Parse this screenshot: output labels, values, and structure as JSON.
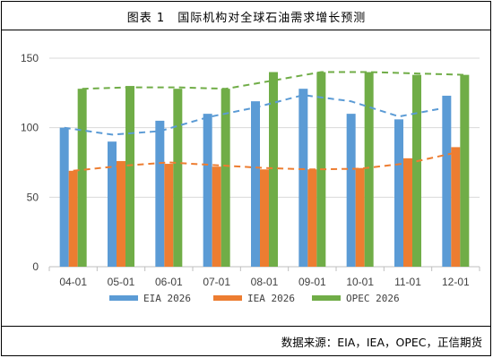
{
  "title": "图表 1　国际机构对全球石油需求增长预测",
  "source": "数据来源：EIA，IEA，OPEC，正信期货",
  "chart_data": {
    "type": "bar",
    "categories": [
      "04-01",
      "05-01",
      "06-01",
      "07-01",
      "08-01",
      "09-01",
      "10-01",
      "11-01",
      "12-01"
    ],
    "series": [
      {
        "name": "EIA 2026",
        "color": "#5B9BD5",
        "values": [
          100,
          90,
          105,
          110,
          119,
          128,
          110,
          106,
          123
        ]
      },
      {
        "name": "IEA 2026",
        "color": "#ED7D31",
        "values": [
          69,
          76,
          74,
          72,
          70,
          70,
          71,
          78,
          86
        ]
      },
      {
        "name": "OPEC 2026",
        "color": "#70AD47",
        "values": [
          128,
          130,
          128,
          128,
          140,
          140,
          140,
          138,
          138
        ]
      }
    ],
    "trendlines": "dashed two-period moving average for each series",
    "y_ticks": [
      0,
      50,
      100,
      150
    ],
    "ylim": [
      0,
      150
    ],
    "grid": "horizontal",
    "legend_position": "bottom"
  }
}
